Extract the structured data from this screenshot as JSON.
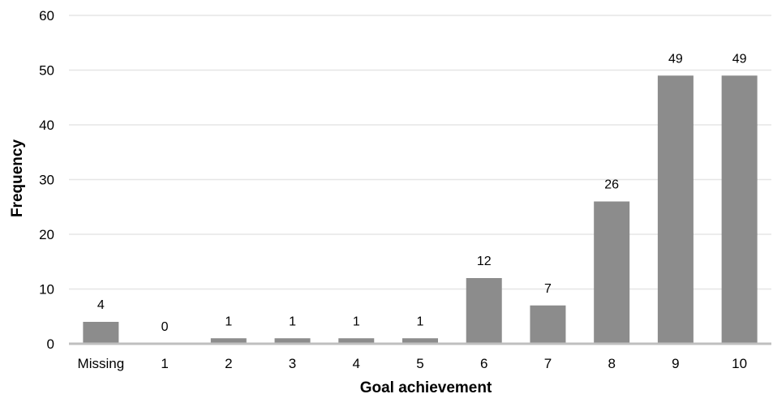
{
  "chart_data": {
    "type": "bar",
    "categories": [
      "Missing",
      "1",
      "2",
      "3",
      "4",
      "5",
      "6",
      "7",
      "8",
      "9",
      "10"
    ],
    "values": [
      4,
      0,
      1,
      1,
      1,
      1,
      12,
      7,
      26,
      49,
      49
    ],
    "data_labels": [
      "4",
      "0",
      "1",
      "1",
      "1",
      "1",
      "12",
      "7",
      "26",
      "49",
      "49"
    ],
    "xlabel": "Goal achievement",
    "ylabel": "Frequency",
    "ylim": [
      0,
      60
    ],
    "yticks": [
      "0",
      "10",
      "20",
      "30",
      "40",
      "50",
      "60"
    ],
    "grid": true,
    "colors": {
      "bar": "#8c8c8c",
      "grid": "#e6e6e6",
      "axis": "#bfbfbf"
    }
  }
}
